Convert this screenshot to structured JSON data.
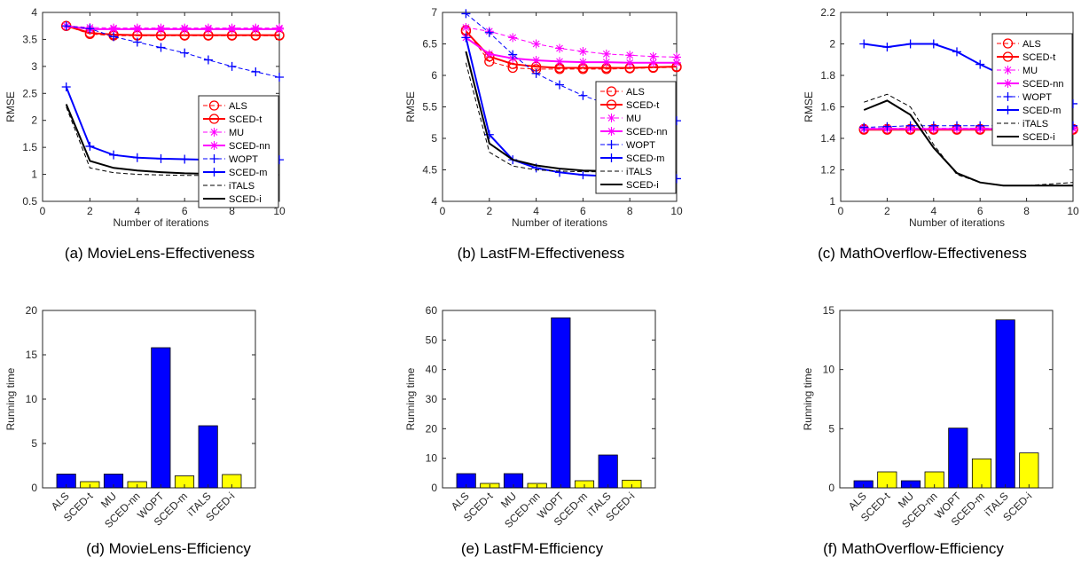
{
  "chart_data": [
    {
      "id": "a",
      "type": "line",
      "caption": "(a) MovieLens-Effectiveness",
      "xlabel": "Number of iterations",
      "ylabel": "RMSE",
      "xlim": [
        0,
        10
      ],
      "ylim": [
        0.5,
        4
      ],
      "xticks": [
        "0",
        "2",
        "4",
        "6",
        "8",
        "10"
      ],
      "yticks": [
        "0.5",
        "1",
        "1.5",
        "2",
        "2.5",
        "3",
        "3.5",
        "4"
      ],
      "x": [
        1,
        2,
        3,
        4,
        5,
        6,
        7,
        8,
        9,
        10
      ],
      "legend": "right",
      "series": [
        {
          "name": "ALS",
          "values": [
            3.75,
            3.6,
            3.57,
            3.57,
            3.57,
            3.57,
            3.57,
            3.57,
            3.57,
            3.57
          ]
        },
        {
          "name": "SCED-t",
          "values": [
            3.75,
            3.62,
            3.59,
            3.58,
            3.58,
            3.58,
            3.58,
            3.58,
            3.58,
            3.58
          ]
        },
        {
          "name": "MU",
          "values": [
            3.75,
            3.72,
            3.71,
            3.71,
            3.71,
            3.71,
            3.71,
            3.71,
            3.71,
            3.71
          ]
        },
        {
          "name": "SCED-nn",
          "values": [
            3.75,
            3.69,
            3.69,
            3.69,
            3.69,
            3.69,
            3.69,
            3.69,
            3.69,
            3.69
          ]
        },
        {
          "name": "WOPT",
          "values": [
            3.75,
            3.7,
            3.55,
            3.45,
            3.35,
            3.25,
            3.12,
            3.0,
            2.9,
            2.8
          ]
        },
        {
          "name": "SCED-m",
          "values": [
            2.62,
            1.52,
            1.36,
            1.31,
            1.29,
            1.28,
            1.27,
            1.27,
            1.27,
            1.27
          ]
        },
        {
          "name": "iTALS",
          "values": [
            2.25,
            1.12,
            1.03,
            1.0,
            0.99,
            0.98,
            0.98,
            0.98,
            0.98,
            0.98
          ]
        },
        {
          "name": "SCED-i",
          "values": [
            2.3,
            1.25,
            1.12,
            1.07,
            1.04,
            1.02,
            1.01,
            1.0,
            1.0,
            0.99
          ]
        }
      ]
    },
    {
      "id": "b",
      "type": "line",
      "caption": "(b) LastFM-Effectiveness",
      "xlabel": "Number of iterations",
      "ylabel": "RMSE",
      "xlim": [
        0,
        10
      ],
      "ylim": [
        4,
        7
      ],
      "xticks": [
        "0",
        "2",
        "4",
        "6",
        "8",
        "10"
      ],
      "yticks": [
        "4",
        "4.5",
        "5",
        "5.5",
        "6",
        "6.5",
        "7"
      ],
      "x": [
        1,
        2,
        3,
        4,
        5,
        6,
        7,
        8,
        9,
        10
      ],
      "legend": "right",
      "series": [
        {
          "name": "ALS",
          "values": [
            6.72,
            6.22,
            6.12,
            6.1,
            6.1,
            6.1,
            6.1,
            6.11,
            6.12,
            6.13
          ]
        },
        {
          "name": "SCED-t",
          "values": [
            6.7,
            6.3,
            6.18,
            6.14,
            6.12,
            6.12,
            6.12,
            6.12,
            6.13,
            6.14
          ]
        },
        {
          "name": "MU",
          "values": [
            6.76,
            6.7,
            6.6,
            6.5,
            6.43,
            6.38,
            6.34,
            6.32,
            6.3,
            6.29
          ]
        },
        {
          "name": "SCED-nn",
          "values": [
            6.6,
            6.34,
            6.27,
            6.24,
            6.22,
            6.21,
            6.21,
            6.2,
            6.2,
            6.2
          ]
        },
        {
          "name": "WOPT",
          "values": [
            6.98,
            6.68,
            6.33,
            6.03,
            5.85,
            5.68,
            5.55,
            5.43,
            5.34,
            5.28
          ]
        },
        {
          "name": "SCED-m",
          "values": [
            6.6,
            5.06,
            4.66,
            4.53,
            4.46,
            4.42,
            4.4,
            4.38,
            4.38,
            4.36
          ]
        },
        {
          "name": "iTALS",
          "values": [
            6.2,
            4.78,
            4.56,
            4.5,
            4.48,
            4.47,
            4.47,
            4.47,
            4.47,
            4.48
          ]
        },
        {
          "name": "SCED-i",
          "values": [
            6.38,
            4.92,
            4.66,
            4.57,
            4.52,
            4.49,
            4.48,
            4.47,
            4.47,
            4.46
          ]
        }
      ]
    },
    {
      "id": "c",
      "type": "line",
      "caption": "(c) MathOverflow-Effectiveness",
      "xlabel": "Number of iterations",
      "ylabel": "RMSE",
      "xlim": [
        0,
        10
      ],
      "ylim": [
        1,
        2.2
      ],
      "xticks": [
        "0",
        "2",
        "4",
        "6",
        "8",
        "10"
      ],
      "yticks": [
        "1",
        "1.2",
        "1.4",
        "1.6",
        "1.8",
        "2",
        "2.2"
      ],
      "x": [
        1,
        2,
        3,
        4,
        5,
        6,
        7,
        8,
        9,
        10
      ],
      "legend": "top-right",
      "series": [
        {
          "name": "ALS",
          "values": [
            1.46,
            1.46,
            1.46,
            1.46,
            1.46,
            1.46,
            1.46,
            1.46,
            1.46,
            1.46
          ]
        },
        {
          "name": "SCED-t",
          "values": [
            1.455,
            1.455,
            1.455,
            1.455,
            1.455,
            1.455,
            1.455,
            1.455,
            1.455,
            1.455
          ]
        },
        {
          "name": "MU",
          "values": [
            1.465,
            1.465,
            1.465,
            1.465,
            1.465,
            1.465,
            1.465,
            1.465,
            1.465,
            1.465
          ]
        },
        {
          "name": "SCED-nn",
          "values": [
            1.46,
            1.46,
            1.46,
            1.46,
            1.46,
            1.46,
            1.46,
            1.46,
            1.46,
            1.46
          ]
        },
        {
          "name": "WOPT",
          "values": [
            1.47,
            1.475,
            1.48,
            1.48,
            1.48,
            1.48,
            1.48,
            1.48,
            1.48,
            1.48
          ]
        },
        {
          "name": "SCED-m",
          "values": [
            2.0,
            1.98,
            2.0,
            2.0,
            1.95,
            1.87,
            1.8,
            1.73,
            1.67,
            1.62
          ]
        },
        {
          "name": "iTALS",
          "values": [
            1.63,
            1.68,
            1.6,
            1.36,
            1.17,
            1.12,
            1.1,
            1.1,
            1.11,
            1.12
          ]
        },
        {
          "name": "SCED-i",
          "values": [
            1.58,
            1.64,
            1.55,
            1.34,
            1.18,
            1.12,
            1.1,
            1.1,
            1.1,
            1.1
          ]
        }
      ]
    },
    {
      "id": "d",
      "type": "bar",
      "caption": "(d) MovieLens-Efficiency",
      "ylabel": "Running time",
      "ylim": [
        0,
        20
      ],
      "yticks": [
        "0",
        "5",
        "10",
        "15",
        "20"
      ],
      "categories": [
        "ALS",
        "SCED-t",
        "MU",
        "SCED-nn",
        "WOPT",
        "SCED-m",
        "iTALS",
        "SCED-i"
      ],
      "values": [
        1.55,
        0.7,
        1.55,
        0.7,
        15.8,
        1.35,
        7.0,
        1.5
      ]
    },
    {
      "id": "e",
      "type": "bar",
      "caption": "(e) LastFM-Efficiency",
      "ylabel": "Running time",
      "ylim": [
        0,
        60
      ],
      "yticks": [
        "0",
        "10",
        "20",
        "30",
        "40",
        "50",
        "60"
      ],
      "categories": [
        "ALS",
        "SCED-t",
        "MU",
        "SCED-nn",
        "WOPT",
        "SCED-m",
        "iTALS",
        "SCED-i"
      ],
      "values": [
        4.8,
        1.5,
        4.8,
        1.5,
        57.5,
        2.4,
        11.1,
        2.6
      ]
    },
    {
      "id": "f",
      "type": "bar",
      "caption": "(f) MathOverflow-Efficiency",
      "ylabel": "Running time",
      "ylim": [
        0,
        15
      ],
      "yticks": [
        "0",
        "5",
        "10",
        "15"
      ],
      "categories": [
        "ALS",
        "SCED-t",
        "MU",
        "SCED-nn",
        "WOPT",
        "SCED-m",
        "iTALS",
        "SCED-i"
      ],
      "values": [
        0.6,
        1.35,
        0.6,
        1.35,
        5.05,
        2.45,
        14.2,
        2.95
      ]
    }
  ],
  "colors": {
    "ALS": "#ff0000",
    "SCED-t": "#ff0000",
    "MU": "#ff00ff",
    "SCED-nn": "#ff00ff",
    "WOPT": "#0000ff",
    "SCED-m": "#0000ff",
    "iTALS": "#000000",
    "SCED-i": "#000000",
    "bar_odd": "#0000ff",
    "bar_even": "#ffff00"
  }
}
